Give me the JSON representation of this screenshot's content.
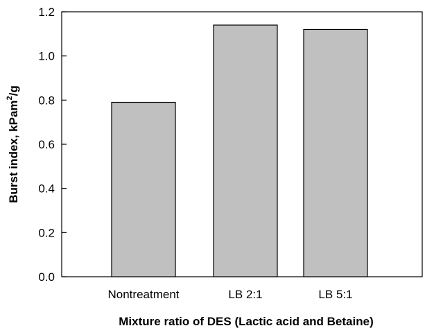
{
  "chart_data": {
    "type": "bar",
    "categories": [
      "Nontreatment",
      "LB 2:1",
      "LB 5:1"
    ],
    "values": [
      0.79,
      1.14,
      1.12
    ],
    "xlabel": "Mixture ratio of DES (Lactic acid and Betaine)",
    "ylabel": {
      "prefix": "Burst index,  kPam",
      "superscript": "2",
      "suffix": "/g"
    },
    "ylim": [
      0,
      1.2
    ],
    "yticks": [
      0.0,
      0.2,
      0.4,
      0.6,
      0.8,
      1.0,
      1.2
    ],
    "ytick_labels": [
      "0.0",
      "0.2",
      "0.4",
      "0.6",
      "0.8",
      "1.0",
      "1.2"
    ],
    "bar_color": "#c0c0c0",
    "grid": false,
    "legend": "none"
  }
}
